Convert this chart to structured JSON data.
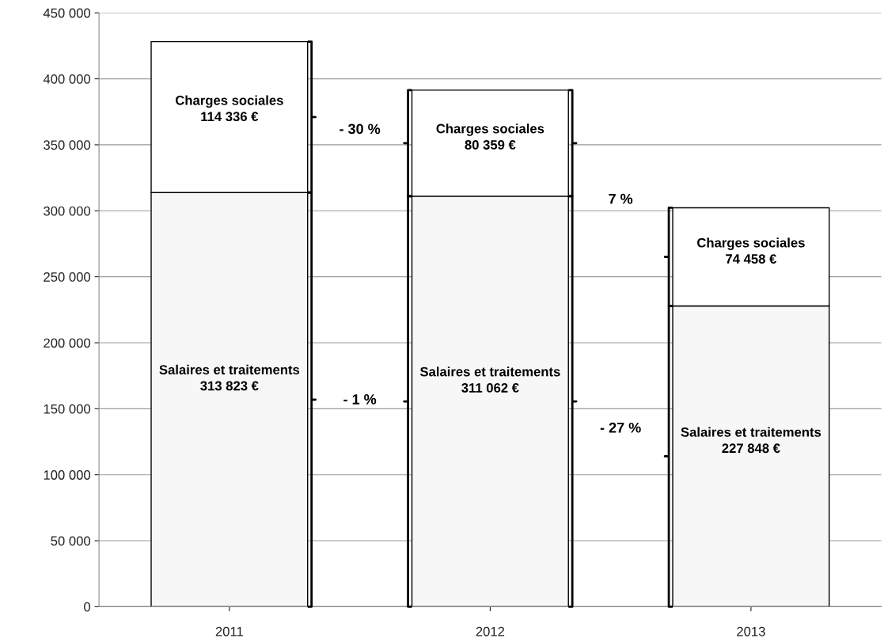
{
  "chart_data": {
    "type": "bar",
    "stacked": true,
    "categories": [
      "2011",
      "2012",
      "2013"
    ],
    "series": [
      {
        "name": "Salaires et traitements",
        "color": "#f7f7f7",
        "values": [
          313823,
          311062,
          227848
        ],
        "value_labels": [
          "313 823 €",
          "311 062 €",
          "227 848 €"
        ]
      },
      {
        "name": "Charges sociales",
        "color": "#ffffff",
        "values": [
          114336,
          80359,
          74458
        ],
        "value_labels": [
          "114 336 €",
          "80 359 €",
          "74 458 €"
        ]
      }
    ],
    "ylim": [
      0,
      450000
    ],
    "yticks": [
      0,
      {
        "value": 50000,
        "label": "50 000"
      },
      {
        "value": 100000,
        "label": "100 000"
      },
      {
        "value": 150000,
        "label": "150 000"
      },
      {
        "value": 200000,
        "label": "200 000"
      },
      {
        "value": 250000,
        "label": "250 000"
      },
      {
        "value": 300000,
        "label": "300 000"
      },
      {
        "value": 350000,
        "label": "350 000"
      },
      {
        "value": 400000,
        "label": "400 000"
      },
      {
        "value": 450000,
        "label": "450 000"
      }
    ],
    "grid": "y",
    "legend": false,
    "annotations": [
      "- 1 %",
      "- 30 %",
      "- 27 %",
      "7 %"
    ]
  }
}
